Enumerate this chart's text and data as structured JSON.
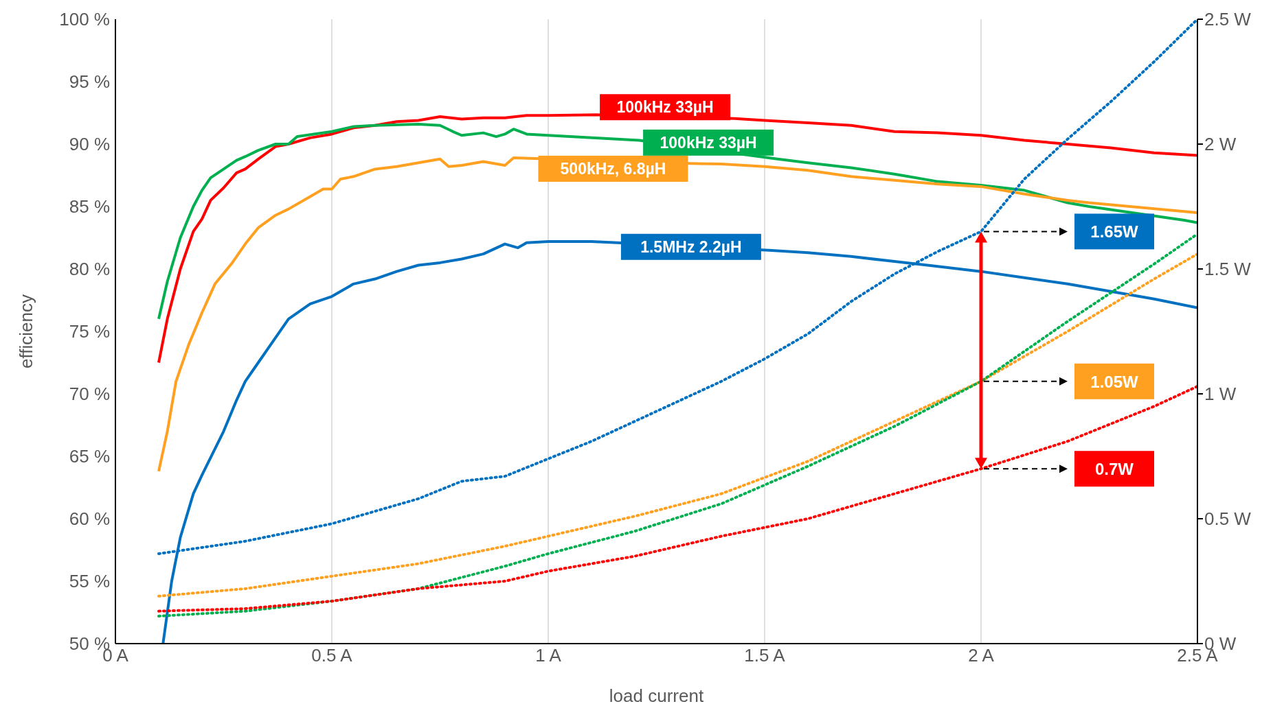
{
  "chart_data": {
    "type": "line",
    "xlabel": "load current",
    "ylabel": "efficiency",
    "xlim": [
      0,
      2.5
    ],
    "xticks": [
      {
        "value": 0,
        "label": "0 A"
      },
      {
        "value": 0.5,
        "label": "0.5 A"
      },
      {
        "value": 1,
        "label": "1 A"
      },
      {
        "value": 1.5,
        "label": "1.5 A"
      },
      {
        "value": 2,
        "label": "2 A"
      },
      {
        "value": 2.5,
        "label": "2.5 A"
      }
    ],
    "ylim": [
      50,
      100
    ],
    "yticks": [
      {
        "value": 50,
        "label": "50 %"
      },
      {
        "value": 55,
        "label": "55 %"
      },
      {
        "value": 60,
        "label": "60 %"
      },
      {
        "value": 65,
        "label": "65 %"
      },
      {
        "value": 70,
        "label": "70 %"
      },
      {
        "value": 75,
        "label": "75 %"
      },
      {
        "value": 80,
        "label": "80 %"
      },
      {
        "value": 85,
        "label": "85 %"
      },
      {
        "value": 90,
        "label": "90 %"
      },
      {
        "value": 95,
        "label": "95 %"
      },
      {
        "value": 100,
        "label": "100 %"
      }
    ],
    "y2lim": [
      0,
      2.5
    ],
    "y2ticks": [
      {
        "value": 0,
        "label": "0 W"
      },
      {
        "value": 0.5,
        "label": "0.5 W"
      },
      {
        "value": 1,
        "label": "1 W"
      },
      {
        "value": 1.5,
        "label": "1.5 W"
      },
      {
        "value": 2,
        "label": "2 W"
      },
      {
        "value": 2.5,
        "label": "2.5 W"
      }
    ],
    "grid": true,
    "marker": "none",
    "series": [
      {
        "name": "100kHz 33µH",
        "color": "#ff0000",
        "line_style": "solid",
        "x": [
          0.1,
          0.12,
          0.15,
          0.18,
          0.2,
          0.22,
          0.25,
          0.28,
          0.3,
          0.33,
          0.37,
          0.4,
          0.45,
          0.5,
          0.55,
          0.6,
          0.65,
          0.7,
          0.75,
          0.8,
          0.85,
          0.9,
          0.95,
          1,
          1.11,
          1.43,
          1.5,
          1.6,
          1.7,
          1.8,
          1.9,
          2,
          2.1,
          2.2,
          2.3,
          2.4,
          2.5
        ],
        "values": [
          72.5,
          76,
          80,
          83,
          84,
          85.5,
          86.5,
          87.7,
          88,
          88.8,
          89.8,
          90,
          90.5,
          90.8,
          91.3,
          91.5,
          91.8,
          91.9,
          92.2,
          92,
          92.1,
          92.1,
          92.3,
          92.3,
          92.35,
          92.05,
          91.9,
          91.7,
          91.5,
          91,
          90.9,
          90.7,
          90.3,
          90,
          89.7,
          89.3,
          89.1
        ]
      },
      {
        "name": "100kHz 33µH",
        "color": "#00b050",
        "line_style": "solid",
        "x": [
          0.1,
          0.12,
          0.15,
          0.18,
          0.2,
          0.22,
          0.25,
          0.28,
          0.3,
          0.33,
          0.37,
          0.4,
          0.42,
          0.5,
          0.55,
          0.6,
          0.7,
          0.75,
          0.78,
          0.8,
          0.85,
          0.88,
          0.9,
          0.92,
          0.95,
          1,
          1.21,
          1.53,
          1.6,
          1.7,
          1.8,
          1.9,
          2,
          2.1,
          2.2,
          2.25,
          2.47,
          2.5
        ],
        "values": [
          76,
          79,
          82.5,
          85,
          86.3,
          87.3,
          88,
          88.7,
          89,
          89.5,
          90,
          90,
          90.6,
          91,
          91.4,
          91.5,
          91.6,
          91.5,
          91,
          90.7,
          90.9,
          90.6,
          90.8,
          91.2,
          90.8,
          90.7,
          90.3,
          88.8,
          88.5,
          88.1,
          87.6,
          87,
          86.7,
          86.3,
          85.3,
          85,
          83.9,
          83.7
        ]
      },
      {
        "name": "500kHz, 6.8µH",
        "color": "#ffa020",
        "line_style": "solid",
        "x": [
          0.1,
          0.12,
          0.14,
          0.17,
          0.2,
          0.23,
          0.27,
          0.3,
          0.33,
          0.37,
          0.4,
          0.45,
          0.48,
          0.5,
          0.52,
          0.55,
          0.6,
          0.65,
          0.7,
          0.75,
          0.77,
          0.8,
          0.85,
          0.9,
          0.92,
          0.97,
          1.33,
          1.4,
          1.5,
          1.6,
          1.7,
          1.8,
          1.9,
          2,
          2.1,
          2.2,
          2.25,
          2.47,
          2.5
        ],
        "values": [
          63.8,
          67,
          71,
          74,
          76.5,
          78.8,
          80.5,
          82,
          83.3,
          84.3,
          84.8,
          85.8,
          86.4,
          86.4,
          87.2,
          87.4,
          88,
          88.2,
          88.5,
          88.8,
          88.2,
          88.3,
          88.6,
          88.3,
          88.9,
          88.85,
          88.45,
          88.4,
          88.2,
          87.9,
          87.4,
          87.1,
          86.8,
          86.6,
          86,
          85.5,
          85.3,
          84.6,
          84.5
        ]
      },
      {
        "name": "1.5MHz 2.2µH",
        "color": "#0070c0",
        "line_style": "solid",
        "x": [
          0.11,
          0.13,
          0.15,
          0.18,
          0.2,
          0.25,
          0.28,
          0.3,
          0.33,
          0.37,
          0.4,
          0.45,
          0.5,
          0.55,
          0.6,
          0.65,
          0.7,
          0.75,
          0.8,
          0.85,
          0.9,
          0.93,
          0.95,
          1,
          1.1,
          1.16,
          1.51,
          1.6,
          1.7,
          1.8,
          1.9,
          2,
          2.1,
          2.2,
          2.3,
          2.4,
          2.5
        ],
        "values": [
          50,
          55,
          58.5,
          62,
          63.5,
          67,
          69.5,
          71,
          72.5,
          74.5,
          76,
          77.2,
          77.8,
          78.8,
          79.2,
          79.8,
          80.3,
          80.5,
          80.8,
          81.2,
          82,
          81.7,
          82.1,
          82.2,
          82.2,
          82.1,
          81.5,
          81.3,
          81,
          80.6,
          80.2,
          79.8,
          79.3,
          78.8,
          78.2,
          77.6,
          76.9
        ]
      },
      {
        "color": "#0070c0",
        "axis": "y2",
        "line_style": "dotted",
        "x": [
          0.1,
          0.3,
          0.5,
          0.7,
          0.8,
          0.9,
          1,
          1.1,
          1.2,
          1.3,
          1.4,
          1.5,
          1.6,
          1.7,
          1.8,
          1.9,
          2,
          2.1,
          2.2,
          2.3,
          2.4,
          2.5
        ],
        "values": [
          0.36,
          0.41,
          0.48,
          0.58,
          0.65,
          0.67,
          0.74,
          0.81,
          0.89,
          0.97,
          1.05,
          1.14,
          1.24,
          1.37,
          1.48,
          1.57,
          1.65,
          1.86,
          2.02,
          2.17,
          2.33,
          2.5
        ]
      },
      {
        "color": "#ffa020",
        "axis": "y2",
        "line_style": "dotted",
        "x": [
          0.1,
          0.3,
          0.5,
          0.7,
          0.9,
          1,
          1.2,
          1.4,
          1.6,
          1.8,
          2,
          2.2,
          2.4,
          2.5
        ],
        "values": [
          0.19,
          0.22,
          0.27,
          0.32,
          0.39,
          0.43,
          0.51,
          0.6,
          0.73,
          0.89,
          1.05,
          1.25,
          1.46,
          1.56
        ]
      },
      {
        "color": "#00b050",
        "axis": "y2",
        "line_style": "dotted",
        "x": [
          0.1,
          0.3,
          0.5,
          0.7,
          0.9,
          1,
          1.2,
          1.4,
          1.6,
          1.8,
          2,
          2.2,
          2.4,
          2.5
        ],
        "values": [
          0.11,
          0.13,
          0.17,
          0.22,
          0.31,
          0.36,
          0.45,
          0.56,
          0.71,
          0.87,
          1.05,
          1.29,
          1.52,
          1.64
        ]
      },
      {
        "color": "#ff0000",
        "axis": "y2",
        "line_style": "dotted",
        "x": [
          0.1,
          0.3,
          0.5,
          0.7,
          0.9,
          1,
          1.2,
          1.4,
          1.6,
          1.8,
          2,
          2.2,
          2.4,
          2.5
        ],
        "values": [
          0.13,
          0.14,
          0.17,
          0.22,
          0.25,
          0.29,
          0.35,
          0.43,
          0.5,
          0.6,
          0.7,
          0.81,
          0.95,
          1.03
        ]
      }
    ],
    "annotations": [
      "1.65W",
      "1.05W",
      "0.7W"
    ]
  }
}
